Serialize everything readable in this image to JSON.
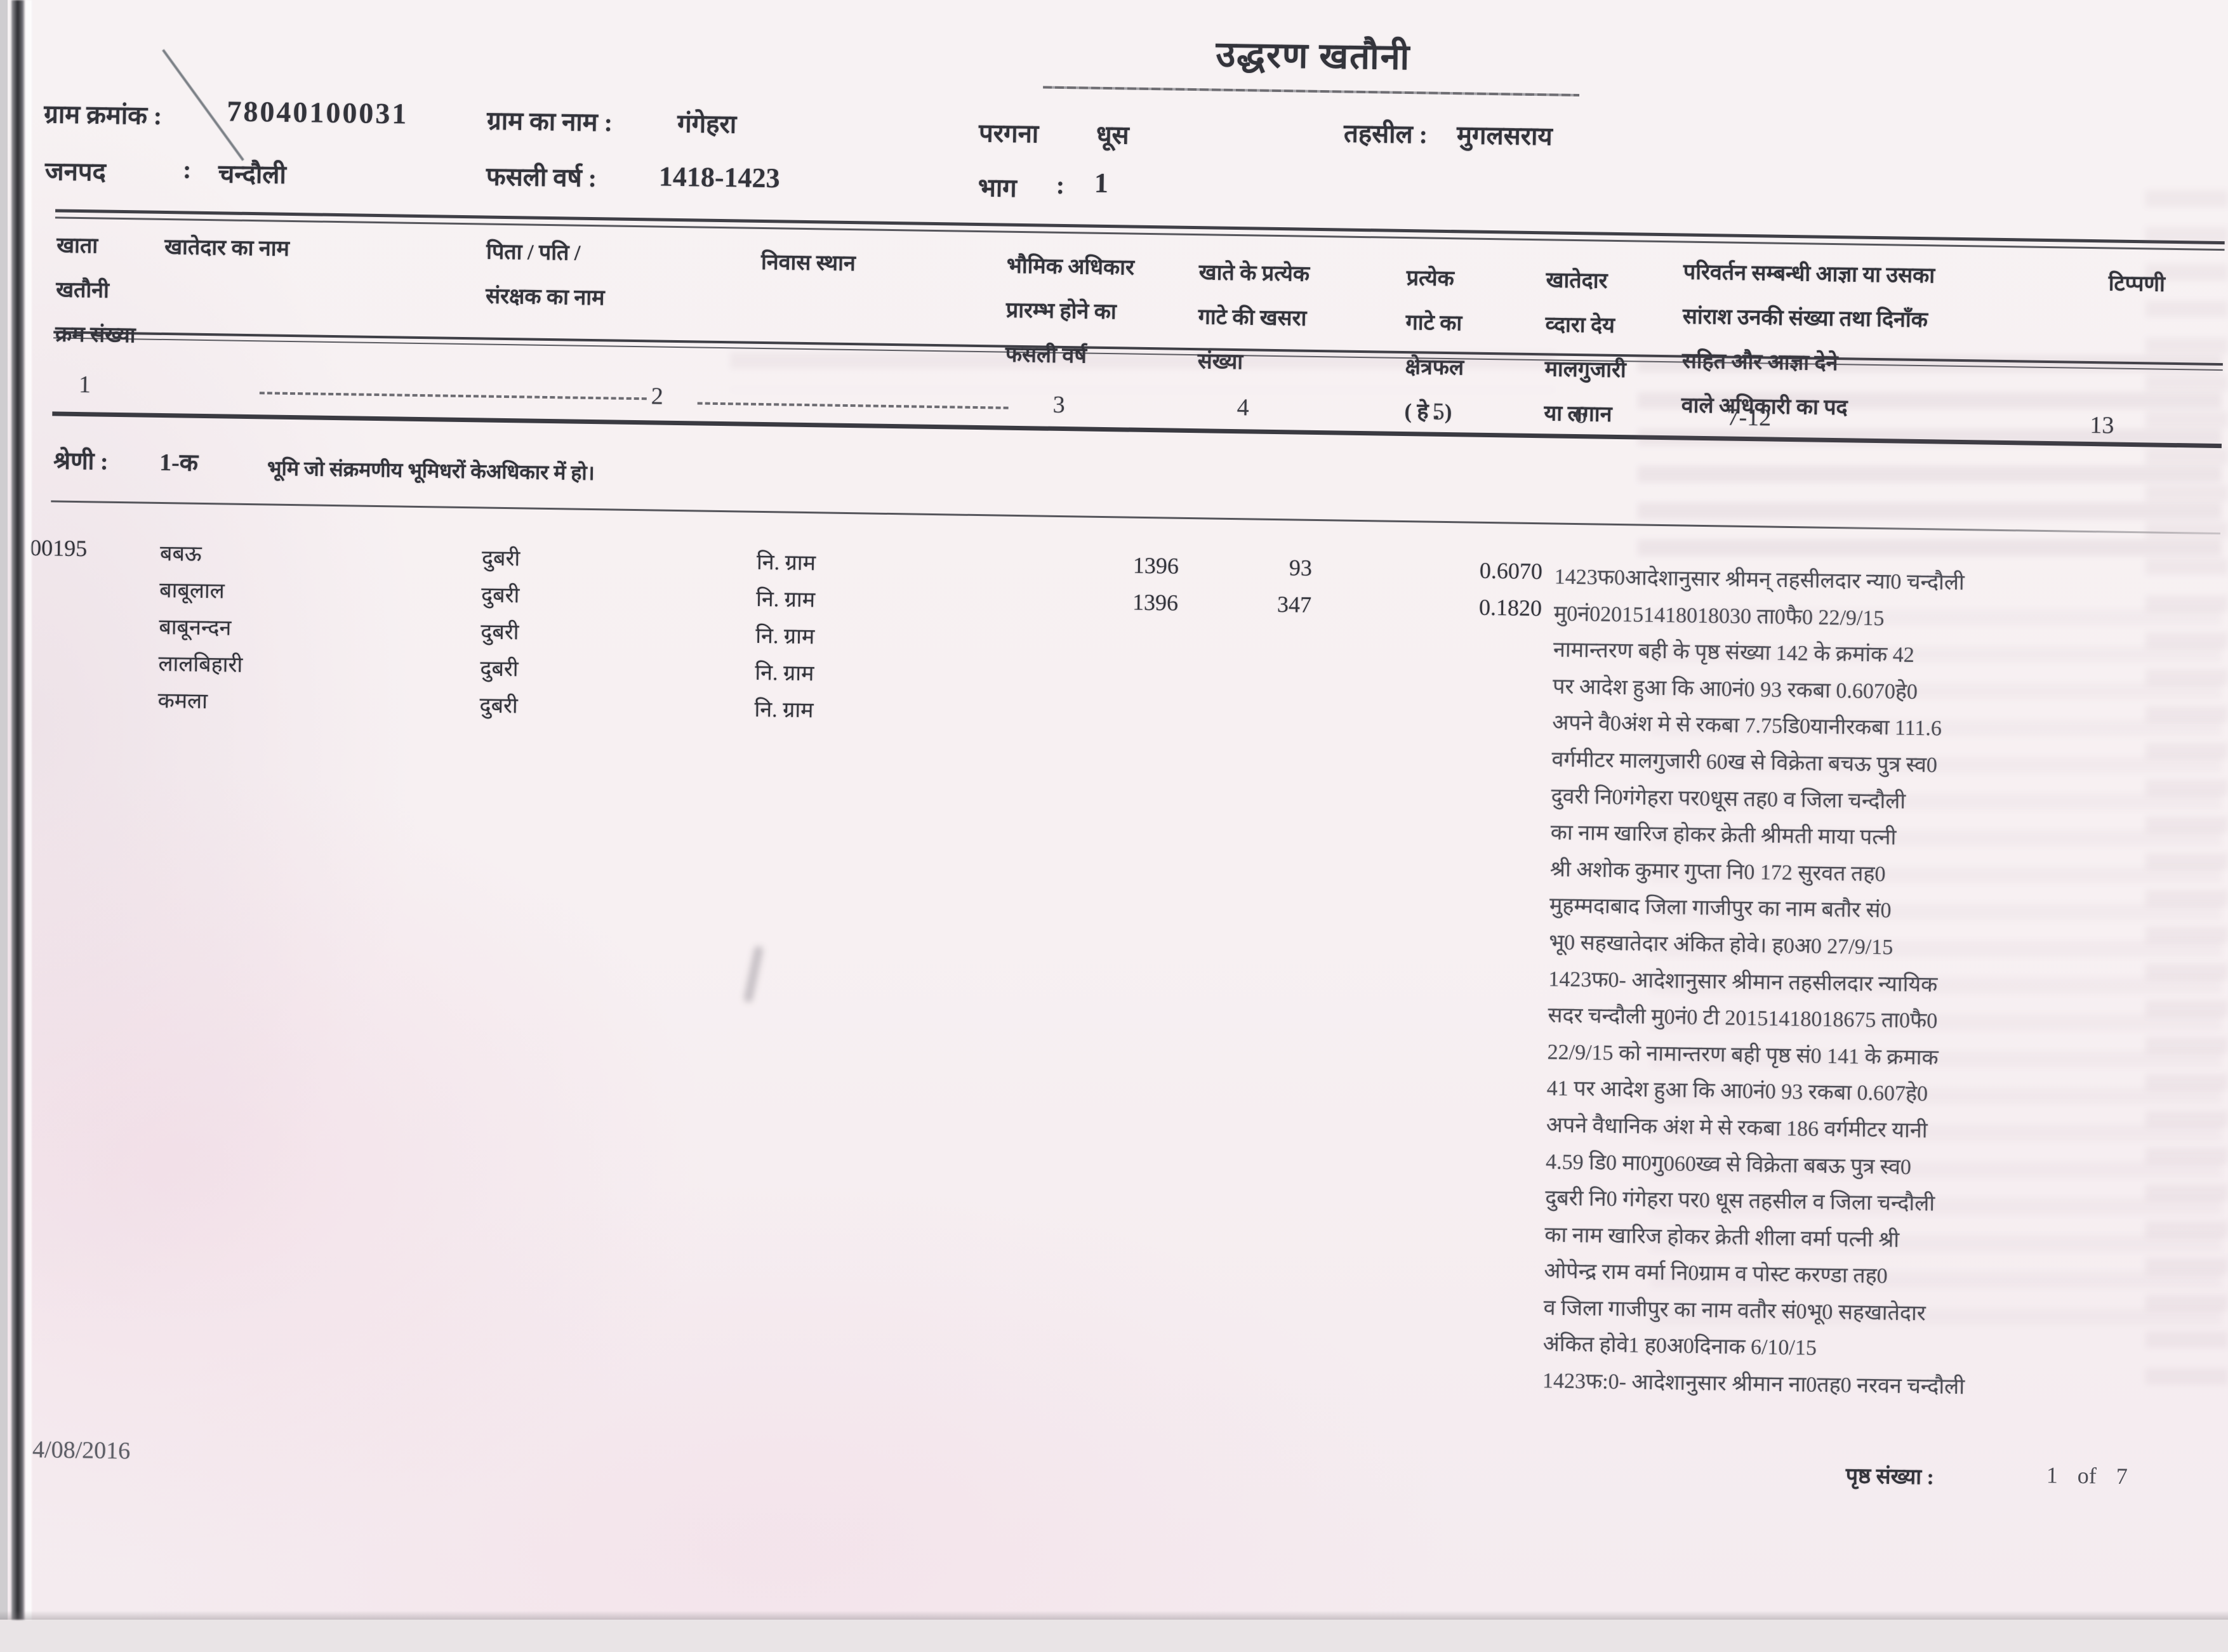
{
  "title": "उद्धरण खतौनी",
  "header": {
    "gram_kramank_label": "ग्राम क्रमांक :",
    "gram_kramank_value": "78040100031",
    "gram_naam_label": "ग्राम का नाम :",
    "gram_naam_value": "गंगेहरा",
    "pargana_label": "परगना",
    "pargana_value": "धूस",
    "tehsil_label": "तहसील :",
    "tehsil_value": "मुगलसराय",
    "janpad_label": "जनपद",
    "janpad_colon": ":",
    "janpad_value": "चन्दौली",
    "fasli_varsh_label": "फसली वर्ष :",
    "fasli_varsh_value": "1418-1423",
    "bhag_label": "भाग",
    "bhag_colon": ":",
    "bhag_value": "1"
  },
  "columns": {
    "c1": "खाता\nखतौनी\nक्रम संख्या",
    "c2": "खातेदार का नाम",
    "c3": "पिता / पति /\nसंरक्षक का नाम",
    "c4": "निवास स्थान",
    "c5": "भौमिक अधिकार\nप्रारम्भ होने का\nफसली वर्ष",
    "c6": "खाते के प्रत्येक\nगाटे की खसरा\nसंख्या",
    "c7": "प्रत्येक\nगाटे का\nक्षेत्रफल\n( हे . )",
    "c8": "खातेदार\nव्दारा देय\nमालगुजारी\nया लगान",
    "c9": "परिवर्तन सम्बन्धी आज्ञा या उसका\nसांराश उनकी संख्या तथा दिनाँक\nसहित  और  आज्ञा देने\nवाले अधिकारी का पद",
    "c10": "टिप्पणी"
  },
  "column_numbers": [
    "1",
    "2",
    "3",
    "4",
    "5",
    "6",
    "7-12",
    "13"
  ],
  "shreni": {
    "label": "श्रेणी :",
    "value": "1-क",
    "desc": "भूमि जो संक्रमणीय  भूमिधरों केअधिकार में हो।"
  },
  "record": {
    "khata_number": "00195",
    "khatedars": [
      {
        "name": "बबऊ",
        "father": "दुबरी",
        "residence": "नि. ग्राम"
      },
      {
        "name": "बाबूलाल",
        "father": "दुबरी",
        "residence": "नि. ग्राम"
      },
      {
        "name": "बाबूनन्दन",
        "father": "दुबरी",
        "residence": "नि. ग्राम"
      },
      {
        "name": "लालबिहारी",
        "father": "दुबरी",
        "residence": "नि. ग्राम"
      },
      {
        "name": "कमला",
        "father": "दुबरी",
        "residence": "नि. ग्राम"
      }
    ],
    "plots": [
      {
        "year": "1396",
        "khasra": "93",
        "area": "0.6070"
      },
      {
        "year": "1396",
        "khasra": "347",
        "area": "0.1820"
      }
    ],
    "order_text": "1423फ0आदेशानुसार श्रीमन् तहसीलदार न्या0  चन्दौली\nमु0नं020151418018030 ता0फै0 22/9/15\nनामान्तरण बही के पृष्ठ संख्या  142 के क्रमांक 42\nपर आदेश हुआ कि आ0नं0 93 रकबा 0.6070हे0\nअपने वै0अंश मे से रकबा 7.75डि0यानीरकबा 111.6\nवर्गमीटर मालगुजारी 60ख से विक्रेता बचऊ पुत्र स्व0\nदुवरी नि0गंगेहरा पर0धूस तह0 व जिला चन्दौली\nका नाम खारिज होकर क्रेती श्रीमती माया पत्नी\nश्री अशोक कुमार गुप्ता नि0 172 सुरवत तह0\nमुहम्मदाबाद जिला गाजीपुर का नाम बतौर सं0\nभू0 सहखातेदार अंकित होवे। ह0अ0 27/9/15\n1423फ0- आदेशानुसार श्रीमान तहसीलदार न्यायिक\nसदर चन्दौली मु0नं0 टी 20151418018675 ता0फै0\n22/9/15 को नामान्तरण बही पृष्ठ सं0 141 के क्रमाक\n41 पर आदेश हुआ कि आ0नं0 93 रकबा 0.607हे0\nअपने वैधानिक अंश मे से रकबा 186 वर्गमीटर यानी\n4.59 डि0 मा0गु060ख्व से विक्रेता बबऊ पुत्र स्व0\nदुबरी नि0 गंगेहरा पर0 धूस तहसील व जिला चन्दौली\nका नाम खारिज होकर क्रेती शीला वर्मा पत्नी श्री\nओपेन्द्र राम वर्मा नि0ग्राम व पोस्ट करण्डा तह0\nव जिला गाजीपुर का नाम वतौर सं0भू0 सहखातेदार\nअंकित होवे1 ह0अ0दिनाक 6/10/15\n1423फ:0- आदेशानुसार श्रीमान ना0तह0 नरवन चन्दौली"
  },
  "footer": {
    "date": "4/08/2016",
    "page_label": "पृष्ठ संख्या :",
    "page_value": "1 of 7"
  }
}
